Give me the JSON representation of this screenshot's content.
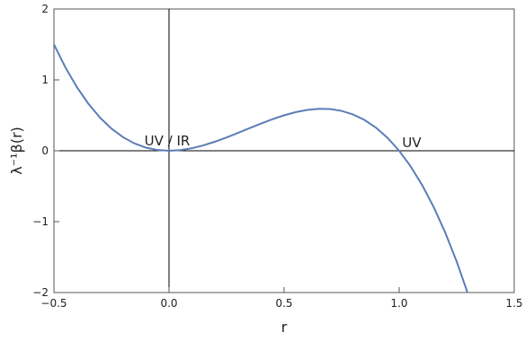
{
  "chart_data": {
    "type": "line",
    "xlabel": "r",
    "ylabel": "λ⁻¹β(r)",
    "annotations": [
      "UV / IR",
      "UV"
    ],
    "x": [
      -0.5,
      -0.45,
      -0.4,
      -0.35,
      -0.3,
      -0.25,
      -0.2,
      -0.15,
      -0.1,
      -0.05,
      0,
      0.05,
      0.1,
      0.15,
      0.2,
      0.25,
      0.3,
      0.35,
      0.4,
      0.45,
      0.5,
      0.55,
      0.6,
      0.65,
      0.7,
      0.75,
      0.8,
      0.85,
      0.9,
      0.95,
      1.0,
      1.05,
      1.1,
      1.15,
      1.2,
      1.25,
      1.3
    ],
    "series": [
      {
        "color": "#5b7db6",
        "values": [
          1.5,
          1.1745,
          0.896,
          0.6615,
          0.468,
          0.3125,
          0.192,
          0.1035,
          0.044,
          0.0105,
          0,
          0.0095,
          0.036,
          0.0765,
          0.128,
          0.1875,
          0.252,
          0.3185,
          0.384,
          0.4455,
          0.5,
          0.5445,
          0.576,
          0.5915,
          0.588,
          0.5625,
          0.512,
          0.4335,
          0.324,
          0.1805,
          0,
          -0.2205,
          -0.484,
          -0.7935,
          -1.152,
          -1.5625,
          -2.028
        ]
      }
    ],
    "xlim": [
      -0.5,
      1.5
    ],
    "ylim": [
      -2,
      2
    ],
    "xticks": [
      {
        "value": -0.5,
        "label": "−0.5"
      },
      {
        "value": 0,
        "label": "0.0"
      },
      0.5,
      {
        "value": 1,
        "label": "1.0"
      },
      1.5
    ],
    "yticks": [
      {
        "value": -2,
        "label": "−2"
      },
      {
        "value": -1,
        "label": "−1"
      },
      0,
      1,
      2
    ]
  }
}
